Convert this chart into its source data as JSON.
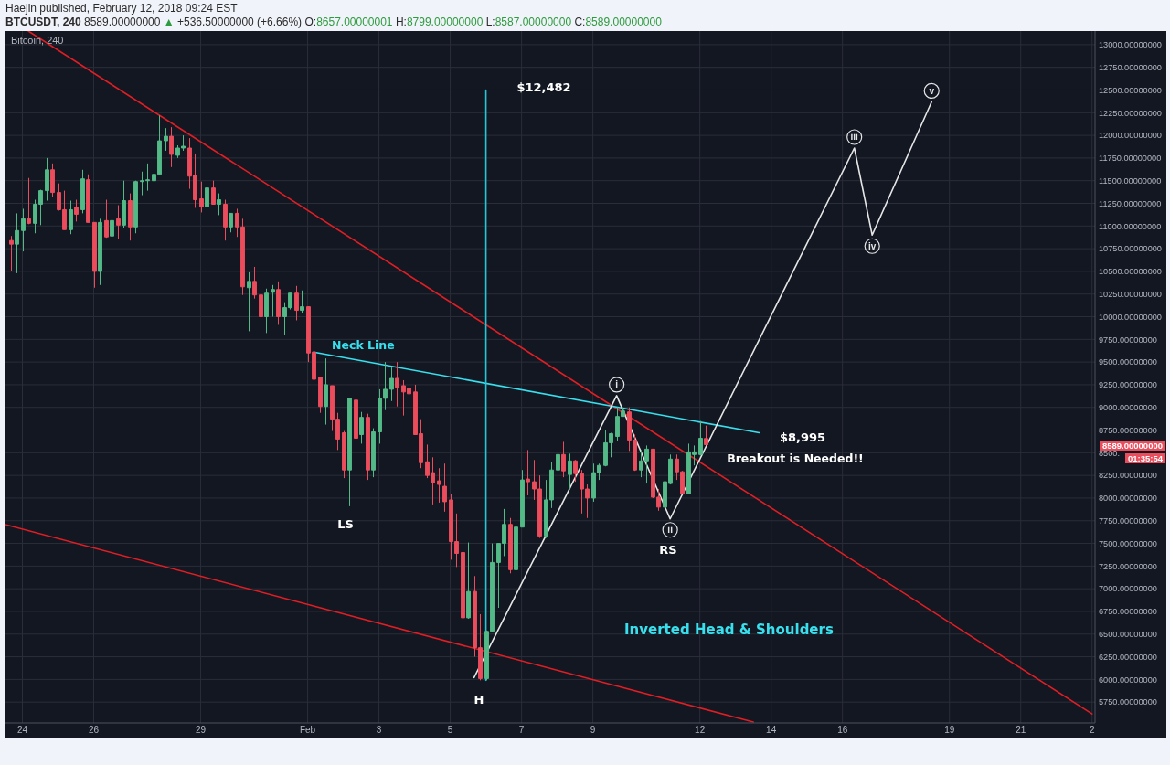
{
  "chart_data": {
    "type": "candlestick",
    "title": "Inverted Head & Shoulders",
    "subtitle": "Bitcoin, 240",
    "x": [
      "2018-01-23T16:00",
      "2018-01-23T20:00",
      "2018-01-24T00:00",
      "2018-01-24T04:00",
      "2018-01-24T08:00",
      "2018-01-24T12:00",
      "2018-01-24T16:00",
      "2018-01-24T20:00",
      "2018-01-25T00:00",
      "2018-01-25T04:00",
      "2018-01-25T08:00",
      "2018-01-25T12:00",
      "2018-01-25T16:00",
      "2018-01-25T20:00",
      "2018-01-26T00:00",
      "2018-01-26T04:00",
      "2018-01-26T08:00",
      "2018-01-26T12:00",
      "2018-01-26T16:00",
      "2018-01-26T20:00",
      "2018-01-27T00:00",
      "2018-01-27T04:00",
      "2018-01-27T08:00",
      "2018-01-27T12:00",
      "2018-01-27T16:00",
      "2018-01-27T20:00",
      "2018-01-28T00:00",
      "2018-01-28T04:00",
      "2018-01-28T08:00",
      "2018-01-28T12:00",
      "2018-01-28T16:00",
      "2018-01-28T20:00",
      "2018-01-29T00:00",
      "2018-01-29T04:00",
      "2018-01-29T08:00",
      "2018-01-29T12:00",
      "2018-01-29T16:00",
      "2018-01-29T20:00",
      "2018-01-30T00:00",
      "2018-01-30T04:00",
      "2018-01-30T08:00",
      "2018-01-30T12:00",
      "2018-01-30T16:00",
      "2018-01-30T20:00",
      "2018-01-31T00:00",
      "2018-01-31T04:00",
      "2018-01-31T08:00",
      "2018-01-31T12:00",
      "2018-01-31T16:00",
      "2018-01-31T20:00",
      "2018-02-01T00:00",
      "2018-02-01T04:00",
      "2018-02-01T08:00",
      "2018-02-01T12:00",
      "2018-02-01T16:00",
      "2018-02-01T20:00",
      "2018-02-02T00:00",
      "2018-02-02T04:00",
      "2018-02-02T08:00",
      "2018-02-02T12:00",
      "2018-02-02T16:00",
      "2018-02-02T20:00",
      "2018-02-03T00:00",
      "2018-02-03T04:00",
      "2018-02-03T08:00",
      "2018-02-03T12:00",
      "2018-02-03T16:00",
      "2018-02-03T20:00",
      "2018-02-04T00:00",
      "2018-02-04T04:00",
      "2018-02-04T08:00",
      "2018-02-04T12:00",
      "2018-02-04T16:00",
      "2018-02-04T20:00",
      "2018-02-05T00:00",
      "2018-02-05T04:00",
      "2018-02-05T08:00",
      "2018-02-05T12:00",
      "2018-02-05T16:00",
      "2018-02-05T20:00",
      "2018-02-06T00:00",
      "2018-02-06T04:00",
      "2018-02-06T08:00",
      "2018-02-06T12:00",
      "2018-02-06T16:00",
      "2018-02-06T20:00",
      "2018-02-07T00:00",
      "2018-02-07T04:00",
      "2018-02-07T08:00",
      "2018-02-07T12:00",
      "2018-02-07T16:00",
      "2018-02-07T20:00",
      "2018-02-08T00:00",
      "2018-02-08T04:00",
      "2018-02-08T08:00",
      "2018-02-08T12:00",
      "2018-02-08T16:00",
      "2018-02-08T20:00",
      "2018-02-09T00:00",
      "2018-02-09T04:00",
      "2018-02-09T08:00",
      "2018-02-09T12:00",
      "2018-02-09T16:00",
      "2018-02-09T20:00",
      "2018-02-10T00:00",
      "2018-02-10T04:00",
      "2018-02-10T08:00",
      "2018-02-10T12:00",
      "2018-02-10T16:00",
      "2018-02-10T20:00",
      "2018-02-11T00:00",
      "2018-02-11T04:00",
      "2018-02-11T08:00",
      "2018-02-11T12:00",
      "2018-02-11T16:00",
      "2018-02-11T20:00",
      "2018-02-12T00:00",
      "2018-02-12T04:00"
    ],
    "ohlc": [
      [
        10840,
        10890,
        10500,
        10800
      ],
      [
        10800,
        11140,
        10480,
        10950
      ],
      [
        10950,
        11190,
        10720,
        11080
      ],
      [
        11080,
        11530,
        11020,
        11030
      ],
      [
        11030,
        11290,
        10920,
        11240
      ],
      [
        11240,
        11400,
        11010,
        11390
      ],
      [
        11390,
        11750,
        11280,
        11620
      ],
      [
        11620,
        11690,
        11320,
        11370
      ],
      [
        11370,
        11470,
        11170,
        11180
      ],
      [
        11180,
        11390,
        10960,
        10960
      ],
      [
        10960,
        11280,
        10910,
        11180
      ],
      [
        11210,
        11290,
        11050,
        11130
      ],
      [
        11180,
        11620,
        11140,
        11520
      ],
      [
        11510,
        11570,
        11040,
        11040
      ],
      [
        11040,
        11040,
        10320,
        10500
      ],
      [
        10500,
        11080,
        10350,
        11040
      ],
      [
        11060,
        11290,
        10870,
        10880
      ],
      [
        10890,
        11160,
        10740,
        11060
      ],
      [
        11080,
        11230,
        10860,
        11010
      ],
      [
        11010,
        11500,
        10980,
        11280
      ],
      [
        11280,
        11360,
        10840,
        10990
      ],
      [
        10990,
        11500,
        10920,
        11490
      ],
      [
        11490,
        11600,
        11340,
        11500
      ],
      [
        11500,
        11690,
        11390,
        11510
      ],
      [
        11500,
        11660,
        11410,
        11570
      ],
      [
        11570,
        12220,
        11570,
        11940
      ],
      [
        11940,
        12080,
        11830,
        11990
      ],
      [
        11990,
        12090,
        11650,
        11790
      ],
      [
        11780,
        11890,
        11750,
        11860
      ],
      [
        11860,
        12000,
        11830,
        11880
      ],
      [
        11860,
        11970,
        11410,
        11550
      ],
      [
        11560,
        11800,
        11200,
        11290
      ],
      [
        11300,
        11490,
        11150,
        11210
      ],
      [
        11210,
        11420,
        11200,
        11420
      ],
      [
        11420,
        11500,
        11240,
        11240
      ],
      [
        11240,
        11360,
        11120,
        11290
      ],
      [
        11240,
        11290,
        10840,
        10990
      ],
      [
        10990,
        11140,
        10930,
        11140
      ],
      [
        11140,
        11190,
        10880,
        10990
      ],
      [
        10990,
        11080,
        10240,
        10330
      ],
      [
        10320,
        10490,
        9840,
        10390
      ],
      [
        10390,
        10550,
        10200,
        10240
      ],
      [
        10240,
        10260,
        9690,
        10000
      ],
      [
        10000,
        10310,
        9820,
        10260
      ],
      [
        10270,
        10350,
        10000,
        10300
      ],
      [
        10300,
        10390,
        9910,
        10000
      ],
      [
        10000,
        10160,
        9800,
        10100
      ],
      [
        10100,
        10260,
        10080,
        10260
      ],
      [
        10260,
        10340,
        9960,
        10070
      ],
      [
        10070,
        10290,
        10040,
        10110
      ],
      [
        10110,
        10110,
        9500,
        9600
      ],
      [
        9610,
        9640,
        9300,
        9310
      ],
      [
        9330,
        9330,
        8940,
        9010
      ],
      [
        9010,
        9540,
        8810,
        9250
      ],
      [
        9240,
        9240,
        8740,
        8870
      ],
      [
        8870,
        8940,
        8530,
        8650
      ],
      [
        8720,
        8740,
        8220,
        8310
      ],
      [
        8310,
        9100,
        7910,
        9100
      ],
      [
        9080,
        9230,
        8500,
        8660
      ],
      [
        8700,
        8950,
        8600,
        8890
      ],
      [
        8890,
        8930,
        8200,
        8310
      ],
      [
        8310,
        8770,
        8230,
        8730
      ],
      [
        8730,
        9200,
        8600,
        9100
      ],
      [
        9100,
        9500,
        8970,
        9200
      ],
      [
        9200,
        9440,
        9070,
        9320
      ],
      [
        9320,
        9500,
        9010,
        9220
      ],
      [
        9240,
        9300,
        8910,
        9170
      ],
      [
        9210,
        9340,
        9000,
        9150
      ],
      [
        9170,
        9250,
        8700,
        8700
      ],
      [
        8710,
        8870,
        8330,
        8390
      ],
      [
        8400,
        8590,
        8220,
        8250
      ],
      [
        8280,
        8450,
        7930,
        8170
      ],
      [
        8190,
        8330,
        7950,
        8150
      ],
      [
        8130,
        8380,
        7850,
        7960
      ],
      [
        7980,
        8050,
        7320,
        7520
      ],
      [
        7520,
        7830,
        7240,
        7390
      ],
      [
        7400,
        7510,
        6670,
        6680
      ],
      [
        6680,
        7510,
        6670,
        6970
      ],
      [
        6970,
        7140,
        6250,
        6350
      ],
      [
        6350,
        6720,
        5990,
        6010
      ],
      [
        6010,
        6540,
        5990,
        6530
      ],
      [
        6530,
        7500,
        6530,
        7290
      ],
      [
        7290,
        7500,
        6790,
        7500
      ],
      [
        7500,
        7880,
        7360,
        7710
      ],
      [
        7710,
        7780,
        7170,
        7210
      ],
      [
        7210,
        7760,
        7170,
        7680
      ],
      [
        7680,
        8310,
        7680,
        8200
      ],
      [
        8210,
        8530,
        8030,
        8180
      ],
      [
        8180,
        8420,
        7980,
        8100
      ],
      [
        8100,
        8250,
        7560,
        7580
      ],
      [
        7580,
        8200,
        7560,
        7980
      ],
      [
        7980,
        8400,
        7890,
        8310
      ],
      [
        8310,
        8640,
        8200,
        8480
      ],
      [
        8480,
        8620,
        8230,
        8300
      ],
      [
        8260,
        8490,
        8100,
        8410
      ],
      [
        8410,
        8420,
        8180,
        8270
      ],
      [
        8270,
        8310,
        7830,
        8100
      ],
      [
        8100,
        8150,
        7780,
        8000
      ],
      [
        8000,
        8380,
        7960,
        8280
      ],
      [
        8280,
        8380,
        8200,
        8360
      ],
      [
        8360,
        8750,
        8350,
        8610
      ],
      [
        8610,
        8720,
        8450,
        8710
      ],
      [
        8680,
        9000,
        8630,
        8900
      ],
      [
        8900,
        9000,
        8900,
        8960
      ],
      [
        8950,
        9000,
        8520,
        8640
      ],
      [
        8640,
        8700,
        8300,
        8310
      ],
      [
        8310,
        8530,
        8230,
        8410
      ],
      [
        8410,
        8580,
        8160,
        8540
      ],
      [
        8540,
        8540,
        8000,
        8010
      ],
      [
        8010,
        8100,
        7860,
        7900
      ],
      [
        7900,
        8200,
        7860,
        8180
      ],
      [
        8160,
        8480,
        8150,
        8430
      ],
      [
        8430,
        8480,
        8200,
        8290
      ],
      [
        8290,
        8300,
        8050,
        8050
      ],
      [
        8050,
        8600,
        8050,
        8510
      ],
      [
        8480,
        8580,
        8360,
        8510
      ],
      [
        8480,
        8850,
        8470,
        8660
      ],
      [
        8657,
        8799,
        8587,
        8589
      ]
    ],
    "colors": [
      "#eb4d5c",
      "#53b987",
      "#53b987",
      "#eb4d5c",
      "#53b987",
      "#53b987",
      "#53b987",
      "#eb4d5c",
      "#eb4d5c",
      "#eb4d5c",
      "#53b987",
      "#eb4d5c",
      "#53b987",
      "#eb4d5c",
      "#eb4d5c",
      "#53b987",
      "#eb4d5c",
      "#53b987",
      "#eb4d5c",
      "#53b987",
      "#eb4d5c",
      "#53b987",
      "#53b987",
      "#53b987",
      "#53b987",
      "#53b987",
      "#53b987",
      "#eb4d5c",
      "#53b987",
      "#53b987",
      "#eb4d5c",
      "#eb4d5c",
      "#eb4d5c",
      "#53b987",
      "#eb4d5c",
      "#53b987",
      "#eb4d5c",
      "#53b987",
      "#eb4d5c",
      "#eb4d5c",
      "#53b987",
      "#eb4d5c",
      "#eb4d5c",
      "#53b987",
      "#53b987",
      "#eb4d5c",
      "#53b987",
      "#53b987",
      "#eb4d5c",
      "#53b987",
      "#eb4d5c",
      "#eb4d5c",
      "#eb4d5c",
      "#53b987",
      "#eb4d5c",
      "#eb4d5c",
      "#eb4d5c",
      "#53b987",
      "#eb4d5c",
      "#53b987",
      "#eb4d5c",
      "#53b987",
      "#53b987",
      "#53b987",
      "#53b987",
      "#eb4d5c",
      "#eb4d5c",
      "#eb4d5c",
      "#eb4d5c",
      "#eb4d5c",
      "#eb4d5c",
      "#eb4d5c",
      "#eb4d5c",
      "#eb4d5c",
      "#eb4d5c",
      "#eb4d5c",
      "#eb4d5c",
      "#53b987",
      "#eb4d5c",
      "#eb4d5c",
      "#53b987",
      "#53b987",
      "#53b987",
      "#53b987",
      "#eb4d5c",
      "#53b987",
      "#53b987",
      "#eb4d5c",
      "#eb4d5c",
      "#eb4d5c",
      "#53b987",
      "#53b987",
      "#53b987",
      "#eb4d5c",
      "#53b987",
      "#eb4d5c",
      "#eb4d5c",
      "#eb4d5c",
      "#53b987",
      "#53b987",
      "#53b987",
      "#53b987",
      "#53b987",
      "#53b987",
      "#eb4d5c",
      "#eb4d5c",
      "#53b987",
      "#53b987",
      "#eb4d5c",
      "#eb4d5c",
      "#53b987",
      "#53b987",
      "#eb4d5c",
      "#eb4d5c",
      "#53b987",
      "#53b987",
      "#53b987",
      "#eb4d5c"
    ],
    "series": [
      {
        "type": "line",
        "x": [
          "2018-01-24T04:00",
          "2018-02-23T00:00"
        ],
        "values": [
          13150,
          5620
        ],
        "color": "#e01e24"
      },
      {
        "type": "line",
        "x": [
          "2018-01-23T12:00",
          "2018-02-13T12:00"
        ],
        "values": [
          7710,
          5530
        ],
        "color": "#e01e24"
      },
      {
        "type": "line",
        "name": "Neck Line",
        "x": [
          "2018-02-01T04:00",
          "2018-02-13T16:00"
        ],
        "values": [
          9610,
          8720
        ],
        "color": "#38e0ee"
      },
      {
        "type": "line",
        "x": [
          "2018-02-06T00:00",
          "2018-02-06T00:00"
        ],
        "values": [
          5990,
          12500
        ],
        "color": "#22c7d8"
      },
      {
        "type": "line",
        "x": [
          "2018-02-05T16:00",
          "2018-02-09T16:00",
          "2018-02-11T04:00",
          "2018-02-16T08:00",
          "2018-02-16T20:00",
          "2018-02-18T12:00"
        ],
        "values": [
          6020,
          9130,
          7770,
          11860,
          10900,
          12370
        ],
        "value_labels": [
          null,
          "i",
          "ii",
          "iii",
          "iv",
          "v"
        ],
        "color": "#e6e6e6"
      }
    ],
    "xlim": [
      "2018-01-23T12:00",
      "2018-02-23T02:00"
    ],
    "xticks": [
      {
        "value": "2018-01-24",
        "label": "24"
      },
      {
        "value": "2018-01-26",
        "label": "26"
      },
      {
        "value": "2018-01-29",
        "label": "29"
      },
      {
        "value": "2018-02-01",
        "label": "Feb"
      },
      {
        "value": "2018-02-03",
        "label": "3"
      },
      {
        "value": "2018-02-05",
        "label": "5"
      },
      {
        "value": "2018-02-07",
        "label": "7"
      },
      {
        "value": "2018-02-09",
        "label": "9"
      },
      {
        "value": "2018-02-12",
        "label": "12"
      },
      {
        "value": "2018-02-14",
        "label": "14"
      },
      {
        "value": "2018-02-16",
        "label": "16"
      },
      {
        "value": "2018-02-19",
        "label": "19"
      },
      {
        "value": "2018-02-21",
        "label": "21"
      },
      {
        "value": "2018-02-23",
        "label": "2"
      }
    ],
    "ylim": [
      5520,
      13150
    ],
    "yticks": [
      {
        "value": 5750,
        "label": "5750.00000000"
      },
      {
        "value": 6000,
        "label": "6000.00000000"
      },
      {
        "value": 6250,
        "label": "6250.00000000"
      },
      {
        "value": 6500,
        "label": "6500.00000000"
      },
      {
        "value": 6750,
        "label": "6750.00000000"
      },
      {
        "value": 7000,
        "label": "7000.00000000"
      },
      {
        "value": 7250,
        "label": "7250.00000000"
      },
      {
        "value": 7500,
        "label": "7500.00000000"
      },
      {
        "value": 7750,
        "label": "7750.00000000"
      },
      {
        "value": 8000,
        "label": "8000.00000000"
      },
      {
        "value": 8250,
        "label": "8250.00000000"
      },
      {
        "value": 8500,
        "label": "8500."
      },
      {
        "value": 8750,
        "label": "8750.00000000"
      },
      {
        "value": 9000,
        "label": "9000.00000000"
      },
      {
        "value": 9250,
        "label": "9250.00000000"
      },
      {
        "value": 9500,
        "label": "9500.00000000"
      },
      {
        "value": 9750,
        "label": "9750.00000000"
      },
      {
        "value": 10000,
        "label": "10000.00000000"
      },
      {
        "value": 10250,
        "label": "10250.00000000"
      },
      {
        "value": 10500,
        "label": "10500.00000000"
      },
      {
        "value": 10750,
        "label": "10750.00000000"
      },
      {
        "value": 11000,
        "label": "11000.00000000"
      },
      {
        "value": 11250,
        "label": "11250.00000000"
      },
      {
        "value": 11500,
        "label": "11500.00000000"
      },
      {
        "value": 11750,
        "label": "11750.00000000"
      },
      {
        "value": 12000,
        "label": "12000.00000000"
      },
      {
        "value": 12250,
        "label": "12250.00000000"
      },
      {
        "value": 12500,
        "label": "12500.00000000"
      },
      {
        "value": 12750,
        "label": "12750.00000000"
      },
      {
        "value": 13000,
        "label": "13000.00000000"
      }
    ],
    "grid": true,
    "annotations": [
      "Haejin published, February 12, 2018 09:24 EST",
      "BTCUSDT, 240 8589.00000000 ▲ +536.50000000 (+6.66%) O:8657.00000001 H:8799.00000000 L:8587.00000000 C:8589.00000000",
      "$12,482",
      "LS",
      "H",
      "RS",
      "$8,995",
      "Breakout is Needed!!",
      "8589.00000000",
      "01:35:54"
    ]
  }
}
